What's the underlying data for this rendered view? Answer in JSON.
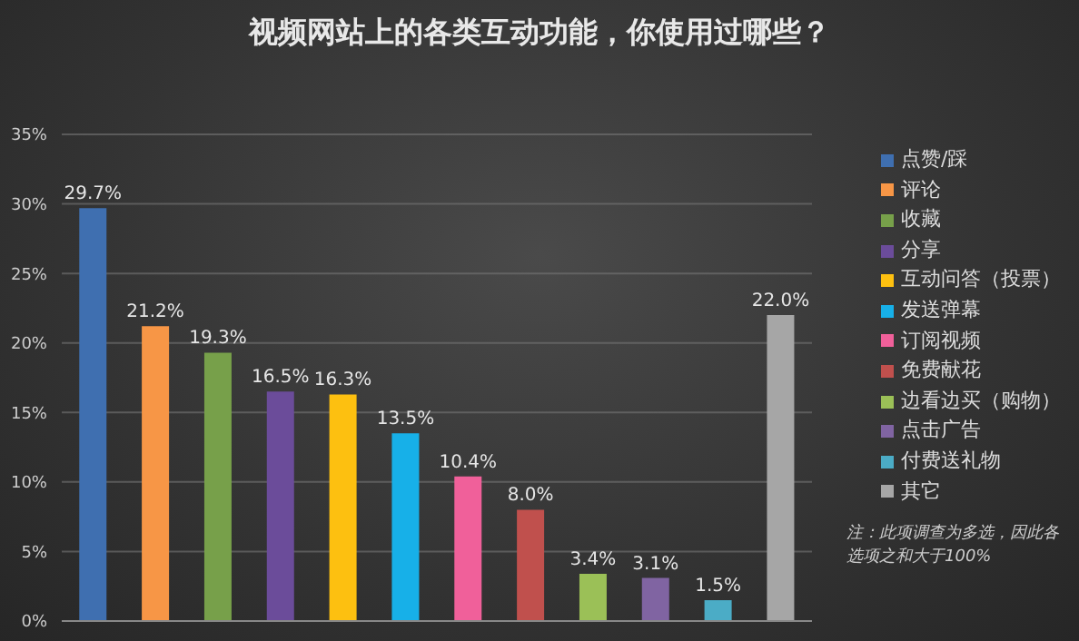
{
  "chart_data": {
    "type": "bar",
    "title": "视频网站上的各类互动功能，你使用过哪些？",
    "categories": [
      null,
      null,
      null,
      null,
      null,
      null,
      null,
      null,
      null,
      null,
      null,
      null
    ],
    "series": [
      {
        "name": "点赞/踩",
        "color": "#3f6fb0",
        "values": [
          29.7,
          null,
          null,
          null,
          null,
          null,
          null,
          null,
          null,
          null,
          null,
          null
        ],
        "value_labels": [
          "29.7%",
          null,
          null,
          null,
          null,
          null,
          null,
          null,
          null,
          null,
          null,
          null
        ]
      },
      {
        "name": "评论",
        "color": "#f79646",
        "values": [
          null,
          21.2,
          null,
          null,
          null,
          null,
          null,
          null,
          null,
          null,
          null,
          null
        ],
        "value_labels": [
          null,
          "21.2%",
          null,
          null,
          null,
          null,
          null,
          null,
          null,
          null,
          null,
          null
        ]
      },
      {
        "name": "收藏",
        "color": "#77a04a",
        "values": [
          null,
          null,
          19.3,
          null,
          null,
          null,
          null,
          null,
          null,
          null,
          null,
          null
        ],
        "value_labels": [
          null,
          null,
          "19.3%",
          null,
          null,
          null,
          null,
          null,
          null,
          null,
          null,
          null
        ]
      },
      {
        "name": "分享",
        "color": "#6b4c9a",
        "values": [
          null,
          null,
          null,
          16.5,
          null,
          null,
          null,
          null,
          null,
          null,
          null,
          null
        ],
        "value_labels": [
          null,
          null,
          null,
          "16.5%",
          null,
          null,
          null,
          null,
          null,
          null,
          null,
          null
        ]
      },
      {
        "name": "互动问答（投票）",
        "color": "#fdc010",
        "values": [
          null,
          null,
          null,
          null,
          16.3,
          null,
          null,
          null,
          null,
          null,
          null,
          null
        ],
        "value_labels": [
          null,
          null,
          null,
          null,
          "16.3%",
          null,
          null,
          null,
          null,
          null,
          null,
          null
        ]
      },
      {
        "name": "发送弹幕",
        "color": "#17b0e8",
        "values": [
          null,
          null,
          null,
          null,
          null,
          13.5,
          null,
          null,
          null,
          null,
          null,
          null
        ],
        "value_labels": [
          null,
          null,
          null,
          null,
          null,
          "13.5%",
          null,
          null,
          null,
          null,
          null,
          null
        ]
      },
      {
        "name": "订阅视频",
        "color": "#f0609a",
        "values": [
          null,
          null,
          null,
          null,
          null,
          null,
          10.4,
          null,
          null,
          null,
          null,
          null
        ],
        "value_labels": [
          null,
          null,
          null,
          null,
          null,
          null,
          "10.4%",
          null,
          null,
          null,
          null,
          null
        ]
      },
      {
        "name": "免费献花",
        "color": "#c0504d",
        "values": [
          null,
          null,
          null,
          null,
          null,
          null,
          null,
          8.0,
          null,
          null,
          null,
          null
        ],
        "value_labels": [
          null,
          null,
          null,
          null,
          null,
          null,
          null,
          "8.0%",
          null,
          null,
          null,
          null
        ]
      },
      {
        "name": "边看边买（购物）",
        "color": "#9bc057",
        "values": [
          null,
          null,
          null,
          null,
          null,
          null,
          null,
          null,
          3.4,
          null,
          null,
          null
        ],
        "value_labels": [
          null,
          null,
          null,
          null,
          null,
          null,
          null,
          null,
          "3.4%",
          null,
          null,
          null
        ]
      },
      {
        "name": "点击广告",
        "color": "#8064a2",
        "values": [
          null,
          null,
          null,
          null,
          null,
          null,
          null,
          null,
          null,
          3.1,
          null,
          null
        ],
        "value_labels": [
          null,
          null,
          null,
          null,
          null,
          null,
          null,
          null,
          null,
          "3.1%",
          null,
          null
        ]
      },
      {
        "name": "付费送礼物",
        "color": "#4bacc6",
        "values": [
          null,
          null,
          null,
          null,
          null,
          null,
          null,
          null,
          null,
          null,
          1.5,
          null
        ],
        "value_labels": [
          null,
          null,
          null,
          null,
          null,
          null,
          null,
          null,
          null,
          null,
          "1.5%",
          null
        ]
      },
      {
        "name": "其它",
        "color": "#a6a6a6",
        "values": [
          null,
          null,
          null,
          null,
          null,
          null,
          null,
          null,
          null,
          null,
          null,
          22.0
        ],
        "value_labels": [
          null,
          null,
          null,
          null,
          null,
          null,
          null,
          null,
          null,
          null,
          null,
          "22.0%"
        ]
      }
    ],
    "ylim": [
      0,
      35
    ],
    "yticks": [
      {
        "value": 0,
        "label": "0%"
      },
      {
        "value": 5,
        "label": "5%"
      },
      {
        "value": 10,
        "label": "10%"
      },
      {
        "value": 15,
        "label": "15%"
      },
      {
        "value": 20,
        "label": "20%"
      },
      {
        "value": 25,
        "label": "25%"
      },
      {
        "value": 30,
        "label": "30%"
      },
      {
        "value": 35,
        "label": "35%"
      }
    ],
    "grid": "y",
    "legend": "right",
    "annotations": [
      "注：此项调查为多选，因此各选项之和大于100%"
    ]
  }
}
